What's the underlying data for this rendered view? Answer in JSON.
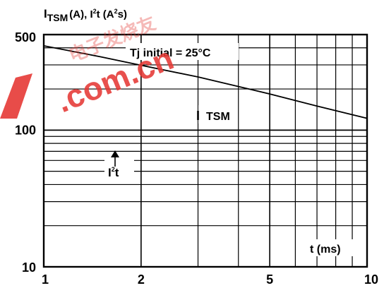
{
  "chart_data": {
    "type": "line",
    "title": "",
    "ylabel": "I_TSM (A), I²t (A²s)",
    "ylabel_parts": {
      "i1": "I",
      "tsm": "TSM",
      "mid": "(A), I",
      "sq1": "2",
      "t": "t (A",
      "sq2": "2",
      "end": "s)"
    },
    "xlabel": "t (ms)",
    "x_scale": "log",
    "y_scale": "log",
    "xlim": [
      1,
      10
    ],
    "ylim": [
      10,
      500
    ],
    "grid": true,
    "x_ticks": [
      {
        "value": 1,
        "label": "1"
      },
      {
        "value": 2,
        "label": "2"
      },
      {
        "value": 5,
        "label": "5"
      },
      {
        "value": 10,
        "label": "10"
      }
    ],
    "y_ticks": [
      {
        "value": 10,
        "label": "10"
      },
      {
        "value": 100,
        "label": "100"
      },
      {
        "value": 500,
        "label": "500"
      }
    ],
    "annotation": "Tj initial = 25°C",
    "series": [
      {
        "name": "TSM",
        "label_parts": {
          "i": "I",
          "rest": "TSM"
        },
        "x": [
          1,
          1.5,
          2,
          3,
          5,
          7,
          10
        ],
        "y": [
          414,
          344,
          298,
          245,
          184,
          150,
          122
        ]
      },
      {
        "name": "I²t",
        "label_parts": {
          "i": "I",
          "sq": "2",
          "t": "t"
        },
        "x": [
          1,
          2,
          3,
          5,
          7,
          10
        ],
        "y": [
          63,
          72,
          76,
          80,
          82,
          84
        ]
      }
    ],
    "colors": {
      "line": "#000000",
      "grid": "#000000",
      "watermark": "#e53935"
    }
  },
  "watermark": {
    "text": ".com.cn",
    "bar": "",
    "chinese": "电子发烧友"
  }
}
